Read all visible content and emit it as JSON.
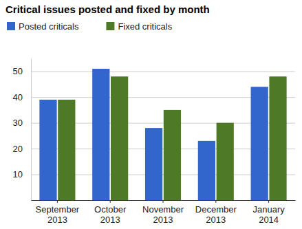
{
  "chart_data": {
    "type": "bar",
    "title": "Critical issues posted and fixed by month",
    "categories": [
      "September 2013",
      "October 2013",
      "November 2013",
      "December 2013",
      "January 2014"
    ],
    "series": [
      {
        "name": "Posted criticals",
        "color": "#3366cc",
        "values": [
          39,
          51,
          28,
          23,
          44
        ]
      },
      {
        "name": "Fixed criticals",
        "color": "#4e7a27",
        "values": [
          39,
          48,
          35,
          30,
          48
        ]
      }
    ],
    "ylim": [
      0,
      55
    ],
    "yticks": [
      10,
      20,
      30,
      40,
      50
    ],
    "grid": true,
    "legend": "top"
  }
}
